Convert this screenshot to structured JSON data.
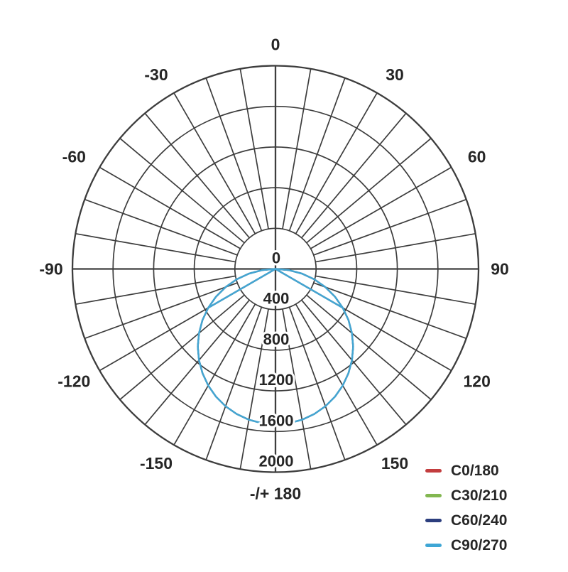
{
  "chart_data": {
    "type": "line",
    "subtype": "polar-photometric-distribution",
    "title": "",
    "orientation": "0 deg at bottom, -/+180 deg at top, negative angles left",
    "angle_grid_step_deg": 10,
    "angle_label_step_deg": 30,
    "angle_labels": [
      {
        "label": "-/+ 180",
        "angle_deg": 180
      },
      {
        "label": "-150",
        "angle_deg": -150
      },
      {
        "label": "150",
        "angle_deg": 150
      },
      {
        "label": "-120",
        "angle_deg": -120
      },
      {
        "label": "120",
        "angle_deg": 120
      },
      {
        "label": "-90",
        "angle_deg": -90
      },
      {
        "label": "90",
        "angle_deg": 90
      },
      {
        "label": "-60",
        "angle_deg": -60
      },
      {
        "label": "60",
        "angle_deg": 60
      },
      {
        "label": "-30",
        "angle_deg": -30
      },
      {
        "label": "30",
        "angle_deg": 30
      },
      {
        "label": "0",
        "angle_deg": 0
      }
    ],
    "radial_axis": {
      "min": 0,
      "max": 2000,
      "tick_step": 400,
      "tick_labels": [
        "0",
        "400",
        "800",
        "1200",
        "1600",
        "2000"
      ],
      "spokes_start_at": 400
    },
    "series": [
      {
        "name": "C0/180",
        "color": "#c33d3e"
      },
      {
        "name": "C30/210",
        "color": "#82b750"
      },
      {
        "name": "C60/240",
        "color": "#2c3e7e"
      },
      {
        "name": "C90/270",
        "color": "#44a5d2"
      }
    ],
    "overlap_note": "C0/180, C30/210 and C60/240 coincide with C90/270 and are hidden beneath it; straight chord segments join the center (±90°) to the ±60° points",
    "profile_angles_deg": [
      -90,
      -85,
      -80,
      -75,
      -70,
      -65,
      -60,
      -55,
      -50,
      -45,
      -40,
      -35,
      -30,
      -25,
      -20,
      -15,
      -10,
      -5,
      0,
      5,
      10,
      15,
      20,
      25,
      30,
      35,
      40,
      45,
      50,
      55,
      60,
      65,
      70,
      75,
      80,
      85,
      90
    ],
    "profile_intensity": [
      0,
      133,
      266,
      396,
      523,
      647,
      765,
      878,
      983,
      1082,
      1172,
      1253,
      1325,
      1387,
      1438,
      1478,
      1507,
      1524,
      1530,
      1524,
      1507,
      1478,
      1438,
      1387,
      1325,
      1253,
      1172,
      1082,
      983,
      878,
      765,
      647,
      523,
      396,
      266,
      133,
      0
    ],
    "peak_intensity": 1530,
    "peak_angle_deg": 0,
    "grid_color": "#3d3d3d",
    "text_color": "#262626"
  },
  "legend": {
    "items": [
      {
        "label": "C0/180",
        "color": "#c33d3e"
      },
      {
        "label": "C30/210",
        "color": "#82b750"
      },
      {
        "label": "C60/240",
        "color": "#2c3e7e"
      },
      {
        "label": "C90/270",
        "color": "#3ea6d5"
      }
    ]
  }
}
